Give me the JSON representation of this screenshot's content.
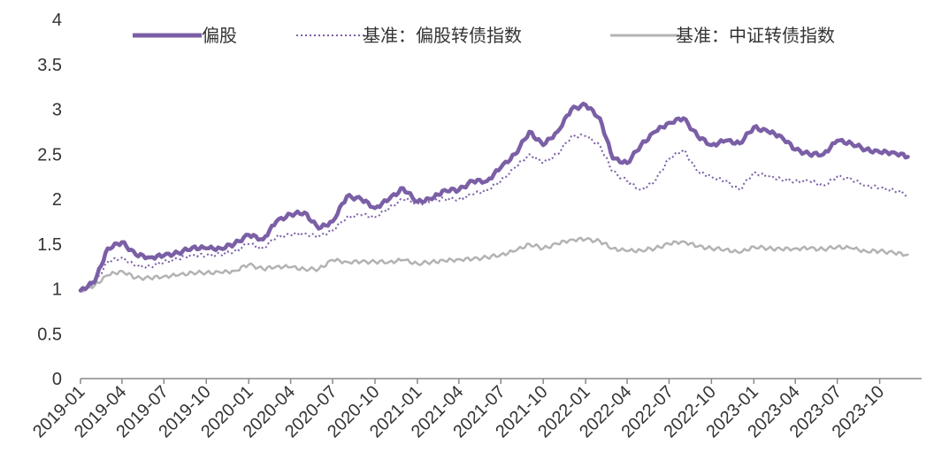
{
  "chart_data": {
    "type": "line",
    "title": "",
    "xlabel": "",
    "ylabel": "",
    "ylim": [
      0,
      4
    ],
    "y_ticks": [
      "0",
      "0.5",
      "1",
      "1.5",
      "2",
      "2.5",
      "3",
      "3.5",
      "4"
    ],
    "x_ticks": [
      "2019-01",
      "2019-04",
      "2019-07",
      "2019-10",
      "2020-01",
      "2020-04",
      "2020-07",
      "2020-10",
      "2021-01",
      "2021-04",
      "2021-07",
      "2021-10",
      "2022-01",
      "2022-04",
      "2022-07",
      "2022-10",
      "2023-01",
      "2023-04",
      "2023-07",
      "2023-10"
    ],
    "grid": false,
    "legend_position": "top",
    "series": [
      {
        "name": "偏股",
        "color": "#7b5fa6",
        "style": "solid-thick",
        "x": [
          "2019-01",
          "2019-02",
          "2019-03",
          "2019-04",
          "2019-05",
          "2019-06",
          "2019-07",
          "2019-08",
          "2019-09",
          "2019-10",
          "2019-11",
          "2019-12",
          "2020-01",
          "2020-02",
          "2020-03",
          "2020-04",
          "2020-05",
          "2020-06",
          "2020-07",
          "2020-08",
          "2020-09",
          "2020-10",
          "2020-11",
          "2020-12",
          "2021-01",
          "2021-02",
          "2021-03",
          "2021-04",
          "2021-05",
          "2021-06",
          "2021-07",
          "2021-08",
          "2021-09",
          "2021-10",
          "2021-11",
          "2021-12",
          "2022-01",
          "2022-02",
          "2022-03",
          "2022-04",
          "2022-05",
          "2022-06",
          "2022-07",
          "2022-08",
          "2022-09",
          "2022-10",
          "2022-11",
          "2022-12",
          "2023-01",
          "2023-02",
          "2023-03",
          "2023-04",
          "2023-05",
          "2023-06",
          "2023-07",
          "2023-08",
          "2023-09",
          "2023-10",
          "2023-11",
          "2023-12"
        ],
        "values": [
          0.98,
          1.08,
          1.45,
          1.52,
          1.38,
          1.35,
          1.37,
          1.4,
          1.46,
          1.45,
          1.45,
          1.5,
          1.6,
          1.55,
          1.75,
          1.83,
          1.85,
          1.67,
          1.75,
          2.03,
          2.0,
          1.9,
          2.0,
          2.12,
          1.97,
          2.0,
          2.1,
          2.1,
          2.2,
          2.2,
          2.35,
          2.5,
          2.75,
          2.6,
          2.75,
          3.0,
          3.05,
          2.9,
          2.45,
          2.4,
          2.6,
          2.75,
          2.85,
          2.9,
          2.7,
          2.6,
          2.65,
          2.62,
          2.8,
          2.75,
          2.7,
          2.55,
          2.5,
          2.5,
          2.65,
          2.62,
          2.55,
          2.52,
          2.52,
          2.47
        ]
      },
      {
        "name": "基准：偏股转债指数",
        "color": "#7b5fa6",
        "style": "dotted",
        "x": [
          "2019-01",
          "2019-02",
          "2019-03",
          "2019-04",
          "2019-05",
          "2019-06",
          "2019-07",
          "2019-08",
          "2019-09",
          "2019-10",
          "2019-11",
          "2019-12",
          "2020-01",
          "2020-02",
          "2020-03",
          "2020-04",
          "2020-05",
          "2020-06",
          "2020-07",
          "2020-08",
          "2020-09",
          "2020-10",
          "2020-11",
          "2020-12",
          "2021-01",
          "2021-02",
          "2021-03",
          "2021-04",
          "2021-05",
          "2021-06",
          "2021-07",
          "2021-08",
          "2021-09",
          "2021-10",
          "2021-11",
          "2021-12",
          "2022-01",
          "2022-02",
          "2022-03",
          "2022-04",
          "2022-05",
          "2022-06",
          "2022-07",
          "2022-08",
          "2022-09",
          "2022-10",
          "2022-11",
          "2022-12",
          "2023-01",
          "2023-02",
          "2023-03",
          "2023-04",
          "2023-05",
          "2023-06",
          "2023-07",
          "2023-08",
          "2023-09",
          "2023-10",
          "2023-11",
          "2023-12"
        ],
        "values": [
          0.98,
          1.06,
          1.3,
          1.35,
          1.25,
          1.25,
          1.3,
          1.33,
          1.38,
          1.37,
          1.38,
          1.42,
          1.5,
          1.45,
          1.58,
          1.6,
          1.62,
          1.58,
          1.65,
          1.8,
          1.82,
          1.8,
          1.9,
          2.0,
          1.95,
          1.98,
          2.0,
          2.0,
          2.05,
          2.1,
          2.2,
          2.35,
          2.5,
          2.4,
          2.5,
          2.7,
          2.7,
          2.6,
          2.3,
          2.2,
          2.1,
          2.2,
          2.45,
          2.55,
          2.3,
          2.25,
          2.2,
          2.1,
          2.3,
          2.25,
          2.22,
          2.2,
          2.2,
          2.15,
          2.25,
          2.22,
          2.15,
          2.12,
          2.1,
          2.05
        ]
      },
      {
        "name": "基准：中证转债指数",
        "color": "#b3b3b3",
        "style": "solid",
        "x": [
          "2019-01",
          "2019-02",
          "2019-03",
          "2019-04",
          "2019-05",
          "2019-06",
          "2019-07",
          "2019-08",
          "2019-09",
          "2019-10",
          "2019-11",
          "2019-12",
          "2020-01",
          "2020-02",
          "2020-03",
          "2020-04",
          "2020-05",
          "2020-06",
          "2020-07",
          "2020-08",
          "2020-09",
          "2020-10",
          "2020-11",
          "2020-12",
          "2021-01",
          "2021-02",
          "2021-03",
          "2021-04",
          "2021-05",
          "2021-06",
          "2021-07",
          "2021-08",
          "2021-09",
          "2021-10",
          "2021-11",
          "2021-12",
          "2022-01",
          "2022-02",
          "2022-03",
          "2022-04",
          "2022-05",
          "2022-06",
          "2022-07",
          "2022-08",
          "2022-09",
          "2022-10",
          "2022-11",
          "2022-12",
          "2023-01",
          "2023-02",
          "2023-03",
          "2023-04",
          "2023-05",
          "2023-06",
          "2023-07",
          "2023-08",
          "2023-09",
          "2023-10",
          "2023-11",
          "2023-12"
        ],
        "values": [
          0.98,
          1.04,
          1.15,
          1.2,
          1.12,
          1.12,
          1.14,
          1.15,
          1.18,
          1.18,
          1.18,
          1.2,
          1.27,
          1.22,
          1.25,
          1.24,
          1.22,
          1.22,
          1.32,
          1.3,
          1.3,
          1.3,
          1.3,
          1.32,
          1.28,
          1.3,
          1.31,
          1.33,
          1.33,
          1.35,
          1.38,
          1.42,
          1.5,
          1.45,
          1.5,
          1.55,
          1.55,
          1.53,
          1.45,
          1.42,
          1.43,
          1.45,
          1.5,
          1.53,
          1.47,
          1.45,
          1.44,
          1.4,
          1.47,
          1.45,
          1.44,
          1.45,
          1.45,
          1.44,
          1.47,
          1.45,
          1.42,
          1.42,
          1.4,
          1.38
        ]
      }
    ]
  }
}
